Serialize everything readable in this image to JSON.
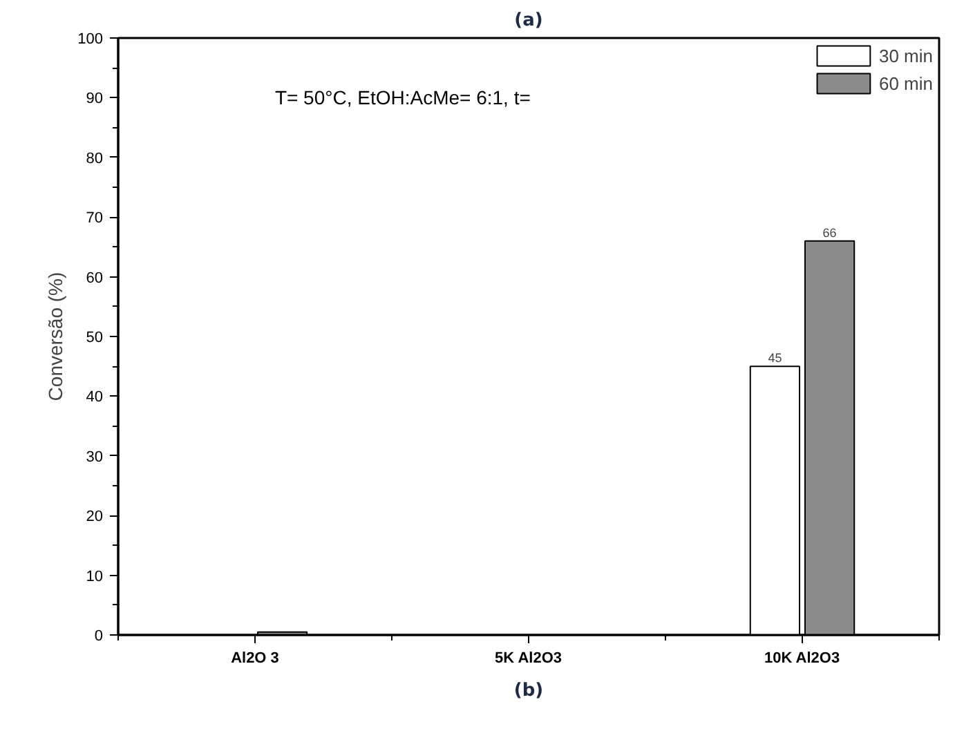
{
  "chart_data": {
    "type": "bar",
    "title": "(a)",
    "ylabel": "Conversão (%)",
    "categories": [
      "Al2O 3",
      "5K Al2O3",
      "10K Al2O3"
    ],
    "series": [
      {
        "name": "30 min",
        "color": "#ffffff",
        "values": [
          null,
          null,
          45
        ],
        "value_labels": [
          null,
          null,
          "45"
        ]
      },
      {
        "name": "60 min",
        "color": "#8c8c8c",
        "values": [
          0.5,
          null,
          66
        ],
        "value_labels": [
          null,
          null,
          "66"
        ]
      }
    ],
    "ylim": [
      0,
      100
    ],
    "yticks": [
      0,
      10,
      20,
      30,
      40,
      50,
      60,
      70,
      80,
      90,
      100
    ],
    "grid": false,
    "legend": "top right",
    "annotations": [
      "T= 50°C, EtOH:AcMe= 6:1, t=",
      "(b)"
    ]
  }
}
